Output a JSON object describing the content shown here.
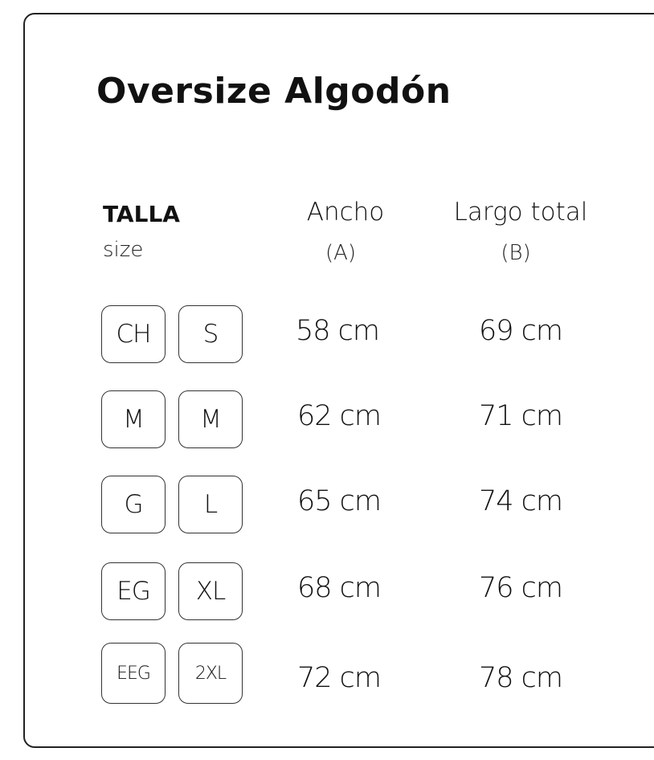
{
  "title": "Oversize Algodón",
  "headers": {
    "talla": "TALLA",
    "size": "size",
    "ancho": "Ancho",
    "ancho_sub": "(A)",
    "largo": "Largo total",
    "largo_sub": "(B)"
  },
  "rows": [
    {
      "mx": "CH",
      "us": "S",
      "ancho": "58 cm",
      "largo": "69 cm"
    },
    {
      "mx": "M",
      "us": "M",
      "ancho": "62 cm",
      "largo": "71 cm"
    },
    {
      "mx": "G",
      "us": "L",
      "ancho": "65 cm",
      "largo": "74 cm"
    },
    {
      "mx": "EG",
      "us": "XL",
      "ancho": "68 cm",
      "largo": "76 cm"
    },
    {
      "mx": "EEG",
      "us": "2XL",
      "ancho": "72 cm",
      "largo": "78 cm"
    }
  ]
}
